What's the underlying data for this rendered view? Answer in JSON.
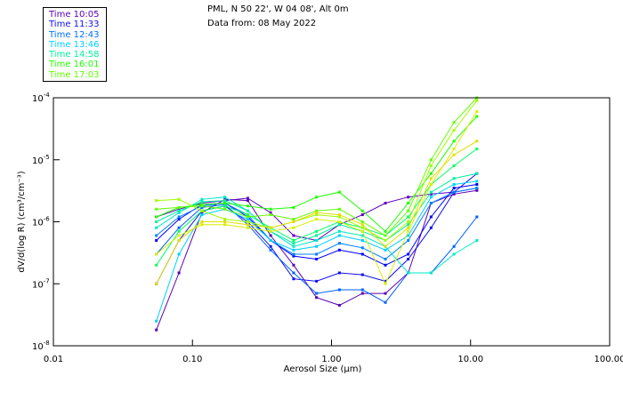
{
  "header": {
    "line1": "PML, N 50 22', W 04 08', Alt 0m",
    "line2": "Data from: 08 May 2022"
  },
  "legend": [
    {
      "label": "Time 10:05",
      "color": "#5a00b4"
    },
    {
      "label": "Time 11:33",
      "color": "#1010f0"
    },
    {
      "label": "Time 12:43",
      "color": "#0070ff"
    },
    {
      "label": "Time 13:46",
      "color": "#00d0ff"
    },
    {
      "label": "Time 14:58",
      "color": "#00f0a0"
    },
    {
      "label": "Time 16:01",
      "color": "#20ff00"
    },
    {
      "label": "Time 17:03",
      "color": "#60ff00"
    }
  ],
  "chart_data": {
    "type": "line",
    "title": "PML, N 50 22', W 04 08', Alt 0m",
    "xlabel": "Aerosol Size (µm)",
    "ylabel": "dV/d(log R) (cm³/cm⁻³)",
    "xscale": "log",
    "yscale": "log",
    "xlim": [
      0.01,
      100
    ],
    "ylim": [
      1e-08,
      0.0001
    ],
    "xticks": [
      "0.01",
      "0.10",
      "1.00",
      "10.00",
      "100.00"
    ],
    "yticks": [
      {
        "base": "10",
        "exp": "-4"
      },
      {
        "base": "10",
        "exp": "-5"
      },
      {
        "base": "10",
        "exp": "-6"
      },
      {
        "base": "10",
        "exp": "-7"
      },
      {
        "base": "10",
        "exp": "-8"
      }
    ],
    "x": [
      0.055,
      0.08,
      0.117,
      0.171,
      0.25,
      0.365,
      0.534,
      0.78,
      1.14,
      1.67,
      2.44,
      3.56,
      5.2,
      7.6,
      11.1
    ],
    "series": [
      {
        "color": "#5a00b4",
        "values": [
          1.8e-08,
          1.5e-07,
          1.4e-06,
          2.3e-06,
          2.2e-06,
          6e-07,
          2e-07,
          6e-08,
          4.5e-08,
          7e-08,
          7e-08,
          1.5e-07,
          2e-06,
          2.8e-06,
          3.2e-06
        ]
      },
      {
        "color": "#6000c0",
        "values": [
          1.2e-06,
          1.6e-06,
          2e-06,
          2.2e-06,
          2.4e-06,
          1.4e-06,
          6e-07,
          5e-07,
          9e-07,
          1.3e-06,
          2e-06,
          2.5e-06,
          2.8e-06,
          3e-06,
          3.5e-06
        ]
      },
      {
        "color": "#1010f0",
        "values": [
          1e-07,
          5e-07,
          1.5e-06,
          1.8e-06,
          1e-06,
          4e-07,
          1.2e-07,
          1.1e-07,
          1.5e-07,
          1.4e-07,
          1.1e-07,
          2.5e-07,
          8e-07,
          3e-06,
          6e-06
        ]
      },
      {
        "color": "#0000ff",
        "values": [
          5e-07,
          1.1e-06,
          1.9e-06,
          2e-06,
          1.2e-06,
          5e-07,
          2.8e-07,
          2.5e-07,
          3.5e-07,
          3e-07,
          2e-07,
          3e-07,
          1.2e-06,
          3.5e-06,
          4e-06
        ]
      },
      {
        "color": "#0060ff",
        "values": [
          3e-07,
          8e-07,
          1.7e-06,
          1.9e-06,
          9e-07,
          3.5e-07,
          1.5e-07,
          7e-08,
          8e-08,
          8e-08,
          5e-08,
          1.5e-07,
          1.5e-07,
          4e-07,
          1.2e-06
        ]
      },
      {
        "color": "#0080ff",
        "values": [
          6e-07,
          1.2e-06,
          1.8e-06,
          2e-06,
          1.3e-06,
          5e-07,
          3e-07,
          3e-07,
          4.5e-07,
          3.8e-07,
          2.5e-07,
          5e-07,
          2e-06,
          3e-06,
          3.5e-06
        ]
      },
      {
        "color": "#00d0ff",
        "values": [
          2.5e-08,
          3e-07,
          1.3e-06,
          1.6e-06,
          1.1e-06,
          5e-07,
          3.5e-07,
          4e-07,
          6e-07,
          5e-07,
          3.5e-07,
          6e-07,
          2.5e-06,
          4e-06,
          4.5e-06
        ]
      },
      {
        "color": "#00e8c8",
        "values": [
          8e-07,
          1.4e-06,
          2.3e-06,
          2.5e-06,
          1.5e-06,
          7e-07,
          4e-07,
          5e-07,
          7e-07,
          6e-07,
          4e-07,
          1.5e-07,
          1.5e-07,
          3e-07,
          5e-07
        ]
      },
      {
        "color": "#00f0a0",
        "values": [
          1e-06,
          1.5e-06,
          2.1e-06,
          2.2e-06,
          1.5e-06,
          7e-07,
          4.5e-07,
          6e-07,
          9e-07,
          7e-07,
          5e-07,
          9e-07,
          3e-06,
          5e-06,
          6e-06
        ]
      },
      {
        "color": "#00ff60",
        "values": [
          2e-07,
          7e-07,
          1.5e-06,
          1.8e-06,
          1.3e-06,
          8e-07,
          5e-07,
          7e-07,
          1e-06,
          8e-07,
          6e-07,
          1.2e-06,
          4e-06,
          8e-06,
          1.5e-05
        ]
      },
      {
        "color": "#20ff00",
        "values": [
          1.2e-06,
          1.7e-06,
          1.9e-06,
          2e-06,
          1.8e-06,
          1.6e-06,
          1.7e-06,
          2.5e-06,
          3e-06,
          1.5e-06,
          7e-07,
          2e-06,
          6e-06,
          2e-05,
          5e-05
        ]
      },
      {
        "color": "#60ff00",
        "values": [
          1.6e-06,
          1.7e-06,
          1.8e-06,
          1.6e-06,
          1.2e-06,
          1.3e-06,
          1.1e-06,
          1.5e-06,
          1.6e-06,
          1e-06,
          6e-07,
          1.5e-06,
          1e-05,
          4e-05,
          0.0001
        ]
      },
      {
        "color": "#a0ff00",
        "values": [
          2.2e-06,
          2.3e-06,
          1.5e-06,
          1.1e-06,
          1e-06,
          8e-07,
          1e-06,
          1.3e-06,
          1.2e-06,
          8e-07,
          5e-07,
          1e-06,
          8e-06,
          3e-05,
          9e-05
        ]
      },
      {
        "color": "#d8f000",
        "values": [
          3e-07,
          6e-07,
          9e-07,
          9e-07,
          8e-07,
          7e-07,
          8e-07,
          1.1e-06,
          1e-06,
          7e-07,
          1e-07,
          7e-07,
          4e-06,
          1.5e-05,
          6e-05
        ]
      },
      {
        "color": "#e0e000",
        "values": [
          1e-07,
          5e-07,
          1e-06,
          1e-06,
          9e-07,
          8e-07,
          1e-06,
          1.4e-06,
          1.3e-06,
          9e-07,
          4e-07,
          8e-07,
          5e-06,
          1.2e-05,
          2e-05
        ]
      }
    ]
  }
}
